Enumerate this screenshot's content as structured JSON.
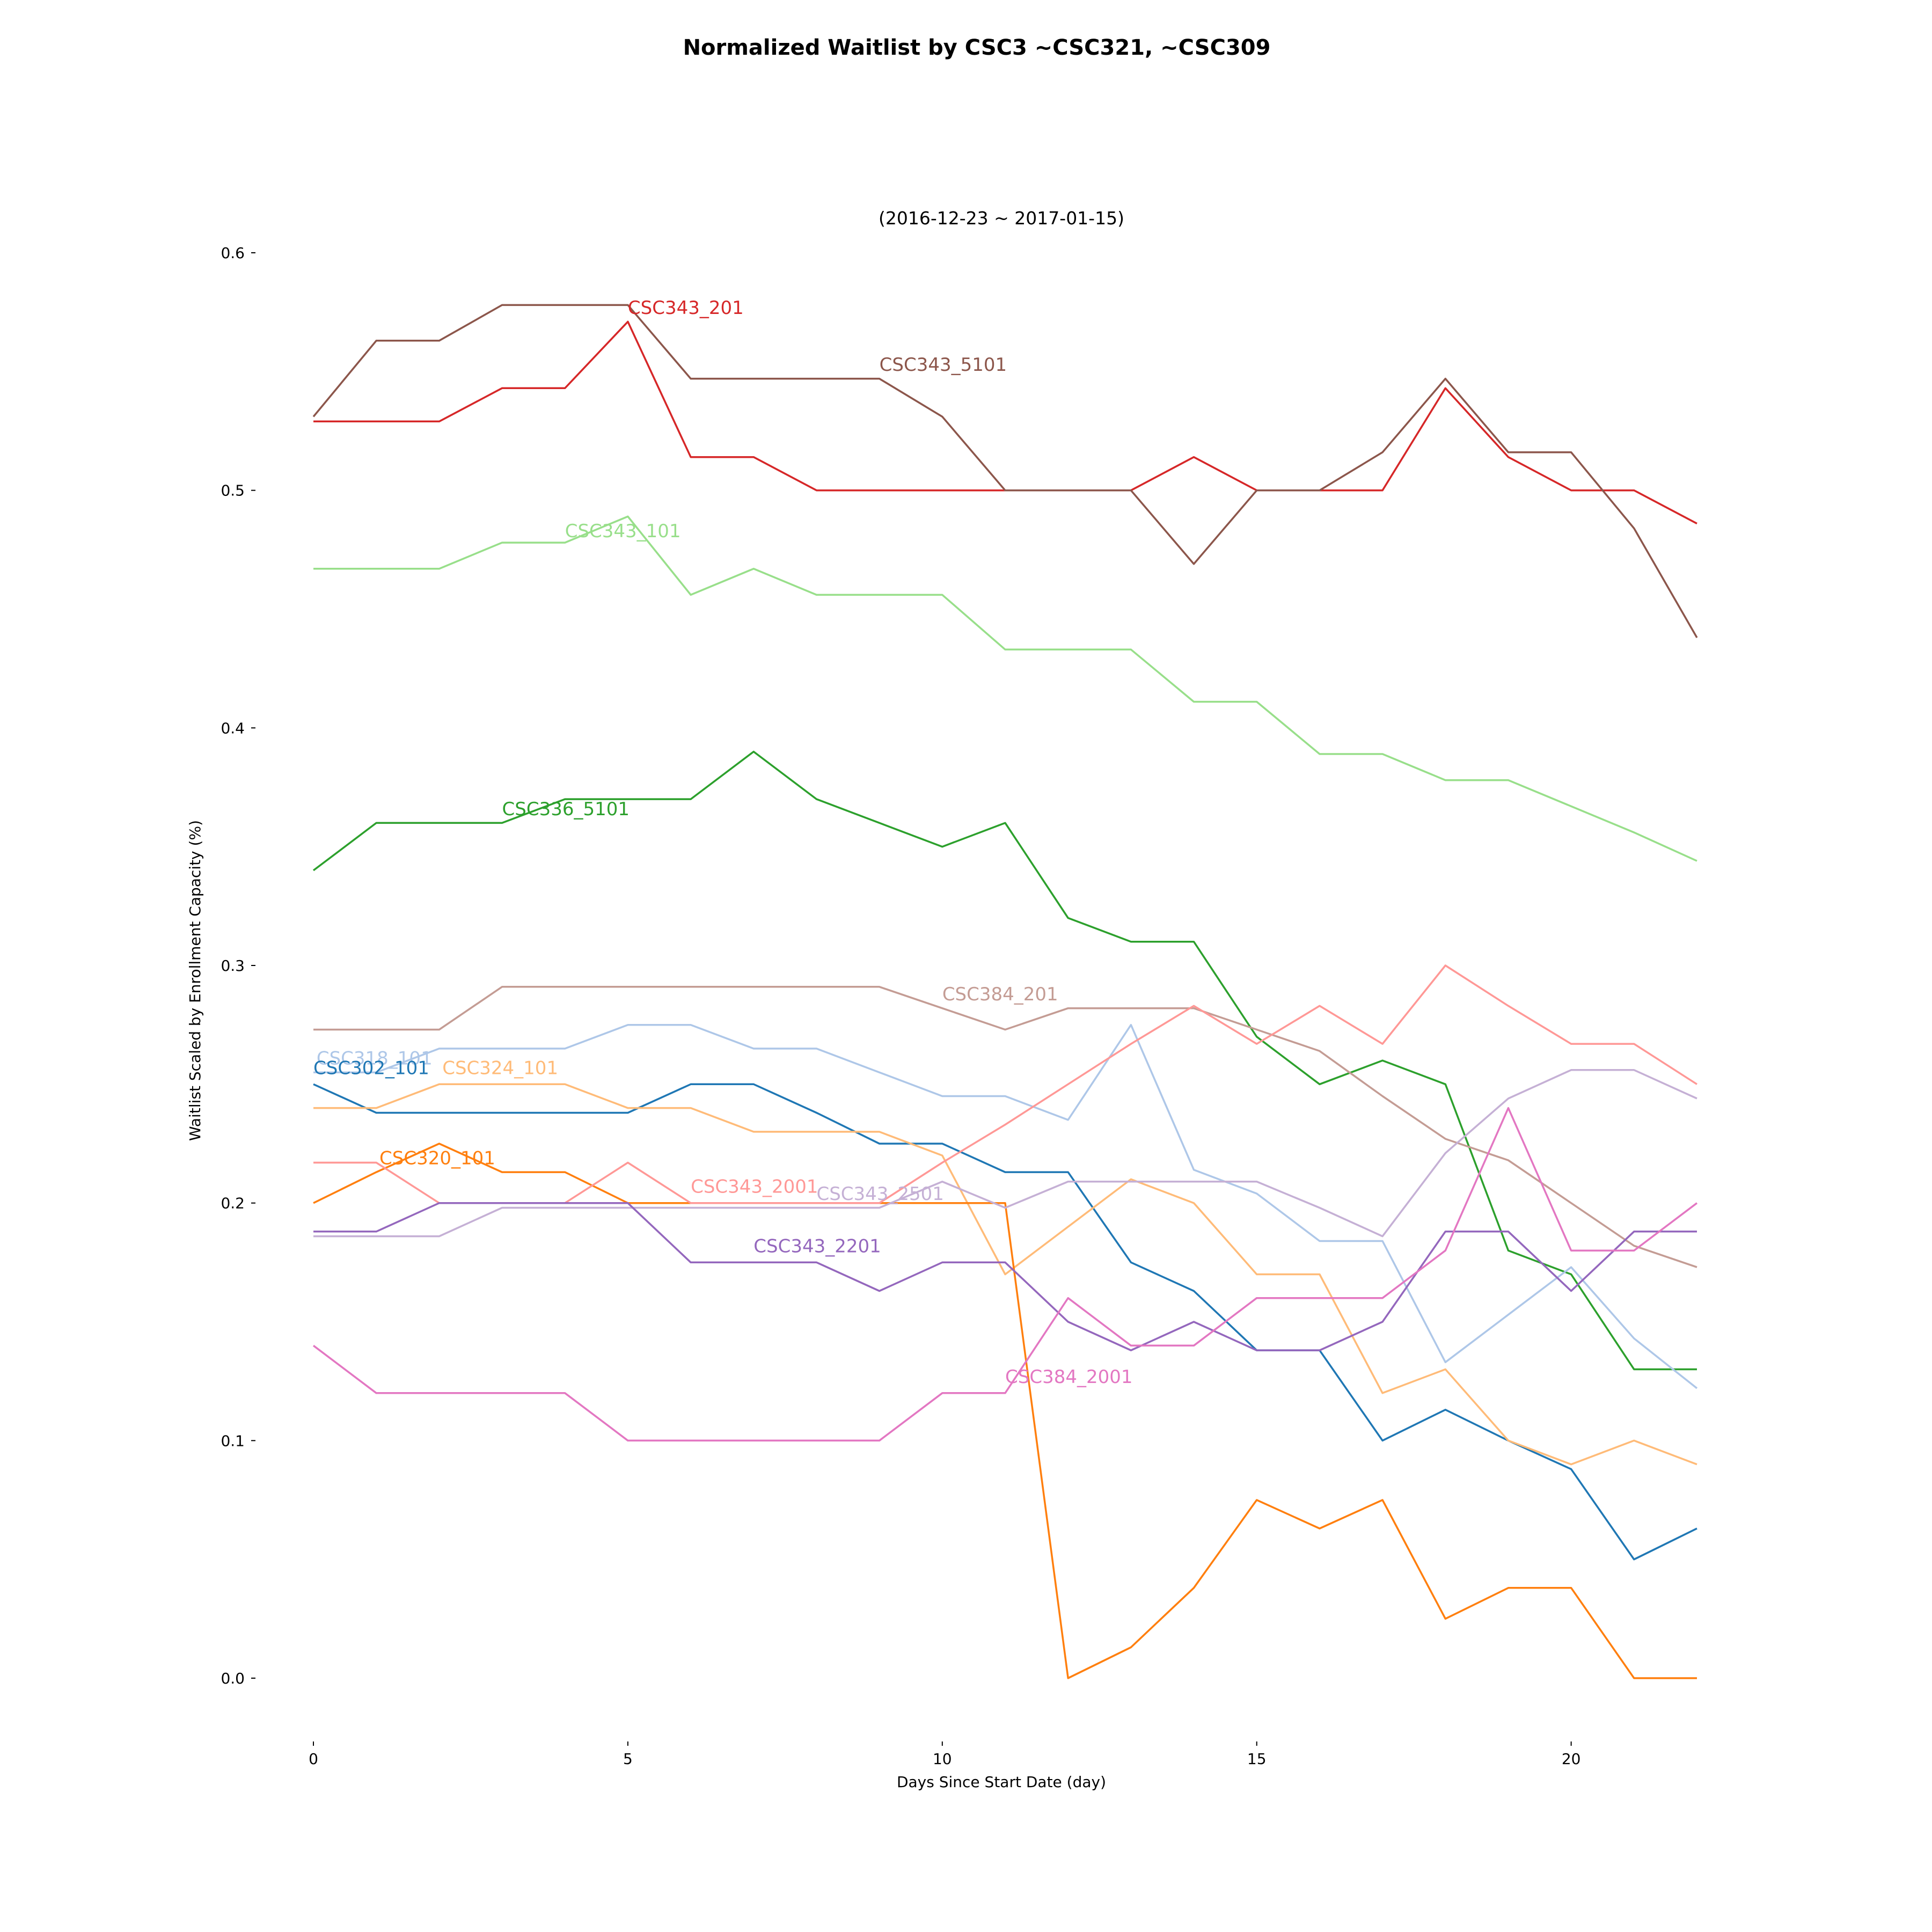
{
  "chart_data": {
    "type": "line",
    "title": "Normalized Waitlist by CSC3 ~CSC321, ~CSC309",
    "subtitle": "(2016-12-23 ~ 2017-01-15)",
    "xlabel": "Days Since Start Date (day)",
    "ylabel": "Waitlist Scaled by Enrollment Capacity (%)",
    "xlim": [
      0,
      22
    ],
    "ylim": [
      -0.03,
      0.6
    ],
    "x_ticks": [
      0,
      5,
      10,
      15,
      20
    ],
    "y_ticks": [
      0.0,
      0.1,
      0.2,
      0.3,
      0.4,
      0.5,
      0.6
    ],
    "x_tick_labels": [
      "0",
      "5",
      "10",
      "15",
      "20"
    ],
    "y_tick_labels": [
      "0.0",
      "0.1",
      "0.2",
      "0.3",
      "0.4",
      "0.5",
      "0.6"
    ],
    "grid": false,
    "x": [
      0,
      1,
      2,
      3,
      4,
      5,
      6,
      7,
      8,
      9,
      10,
      11,
      12,
      13,
      14,
      15,
      16,
      17,
      18,
      19,
      20,
      21,
      22
    ],
    "series": [
      {
        "name": "CSC343_201",
        "color": "#d62728",
        "label_at": [
          5,
          0.577
        ],
        "values": [
          0.529,
          0.529,
          0.529,
          0.543,
          0.543,
          0.571,
          0.514,
          0.514,
          0.5,
          0.5,
          0.5,
          0.5,
          0.5,
          0.5,
          0.514,
          0.5,
          0.5,
          0.5,
          0.543,
          0.514,
          0.5,
          0.5,
          0.486
        ]
      },
      {
        "name": "CSC343_5101",
        "color": "#8c564b",
        "label_at": [
          9,
          0.553
        ],
        "values": [
          0.531,
          0.563,
          0.563,
          0.578,
          0.578,
          0.578,
          0.547,
          0.547,
          0.547,
          0.547,
          0.531,
          0.5,
          0.5,
          0.5,
          0.469,
          0.5,
          0.5,
          0.516,
          0.547,
          0.516,
          0.516,
          0.484,
          0.438
        ]
      },
      {
        "name": "CSC343_101",
        "color": "#98df8a",
        "label_at": [
          4,
          0.483
        ],
        "values": [
          0.467,
          0.467,
          0.467,
          0.478,
          0.478,
          0.489,
          0.456,
          0.467,
          0.456,
          0.456,
          0.456,
          0.433,
          0.433,
          0.433,
          0.411,
          0.411,
          0.389,
          0.389,
          0.378,
          0.378,
          0.367,
          0.356,
          0.344
        ]
      },
      {
        "name": "CSC336_5101",
        "color": "#2ca02c",
        "label_at": [
          3,
          0.366
        ],
        "values": [
          0.34,
          0.36,
          0.36,
          0.36,
          0.37,
          0.37,
          0.37,
          0.39,
          0.37,
          0.36,
          0.35,
          0.36,
          0.32,
          0.31,
          0.31,
          0.27,
          0.25,
          0.26,
          0.25,
          0.18,
          0.17,
          0.13,
          0.13
        ]
      },
      {
        "name": "CSC384_201",
        "color": "#c49c94",
        "label_at": [
          10,
          0.288
        ],
        "values": [
          0.273,
          0.273,
          0.273,
          0.291,
          0.291,
          0.291,
          0.291,
          0.291,
          0.291,
          0.291,
          0.282,
          0.273,
          0.282,
          0.282,
          0.282,
          0.273,
          0.264,
          0.245,
          0.227,
          0.218,
          0.2,
          0.182,
          0.173
        ]
      },
      {
        "name": "CSC318_101",
        "color": "#aec7e8",
        "label_at": [
          0.05,
          0.261
        ],
        "values": [
          0.255,
          0.255,
          0.265,
          0.265,
          0.265,
          0.275,
          0.275,
          0.265,
          0.265,
          0.255,
          0.245,
          0.245,
          0.235,
          0.275,
          0.214,
          0.204,
          0.184,
          0.184,
          0.133,
          0.153,
          0.173,
          0.143,
          0.122
        ]
      },
      {
        "name": "CSC302_101",
        "color": "#1f77b4",
        "label_at": [
          0,
          0.257
        ],
        "values": [
          0.25,
          0.238,
          0.238,
          0.238,
          0.238,
          0.238,
          0.25,
          0.25,
          0.238,
          0.225,
          0.225,
          0.213,
          0.213,
          0.175,
          0.163,
          0.138,
          0.138,
          0.1,
          0.113,
          0.1,
          0.088,
          0.05,
          0.063
        ]
      },
      {
        "name": "CSC324_101",
        "color": "#ffbb78",
        "label_at": [
          2.05,
          0.257
        ],
        "values": [
          0.24,
          0.24,
          0.25,
          0.25,
          0.25,
          0.24,
          0.24,
          0.23,
          0.23,
          0.23,
          0.22,
          0.17,
          0.19,
          0.21,
          0.2,
          0.17,
          0.17,
          0.12,
          0.13,
          0.1,
          0.09,
          0.1,
          0.09
        ]
      },
      {
        "name": "CSC320_101",
        "color": "#ff7f0e",
        "label_at": [
          1.05,
          0.219
        ],
        "values": [
          0.2,
          0.213,
          0.225,
          0.213,
          0.213,
          0.2,
          0.2,
          0.2,
          0.2,
          0.2,
          0.2,
          0.2,
          0.0,
          0.013,
          0.038,
          0.075,
          0.063,
          0.075,
          0.025,
          0.038,
          0.038,
          0.0,
          0.0
        ]
      },
      {
        "name": "CSC343_2001",
        "color": "#ff9896",
        "label_at": [
          6,
          0.207
        ],
        "values": [
          0.217,
          0.217,
          0.2,
          0.2,
          0.2,
          0.217,
          0.2,
          0.2,
          0.2,
          0.2,
          0.217,
          0.233,
          0.25,
          0.267,
          0.283,
          0.267,
          0.283,
          0.267,
          0.3,
          0.283,
          0.267,
          0.267,
          0.25
        ]
      },
      {
        "name": "CSC343_2501",
        "color": "#c5b0d5",
        "label_at": [
          8,
          0.204
        ],
        "values": [
          0.186,
          0.186,
          0.186,
          0.198,
          0.198,
          0.198,
          0.198,
          0.198,
          0.198,
          0.198,
          0.209,
          0.198,
          0.209,
          0.209,
          0.209,
          0.209,
          0.198,
          0.186,
          0.221,
          0.244,
          0.256,
          0.256,
          0.244
        ]
      },
      {
        "name": "CSC343_2201",
        "color": "#9467bd",
        "label_at": [
          7,
          0.182
        ],
        "values": [
          0.188,
          0.188,
          0.2,
          0.2,
          0.2,
          0.2,
          0.175,
          0.175,
          0.175,
          0.163,
          0.175,
          0.175,
          0.15,
          0.138,
          0.15,
          0.138,
          0.138,
          0.15,
          0.188,
          0.188,
          0.163,
          0.188,
          0.188
        ]
      },
      {
        "name": "CSC384_2001",
        "color": "#e377c2",
        "label_at": [
          11,
          0.127
        ],
        "values": [
          0.14,
          0.12,
          0.12,
          0.12,
          0.12,
          0.1,
          0.1,
          0.1,
          0.1,
          0.1,
          0.12,
          0.12,
          0.16,
          0.14,
          0.14,
          0.16,
          0.16,
          0.16,
          0.18,
          0.24,
          0.18,
          0.18,
          0.2
        ]
      }
    ]
  }
}
